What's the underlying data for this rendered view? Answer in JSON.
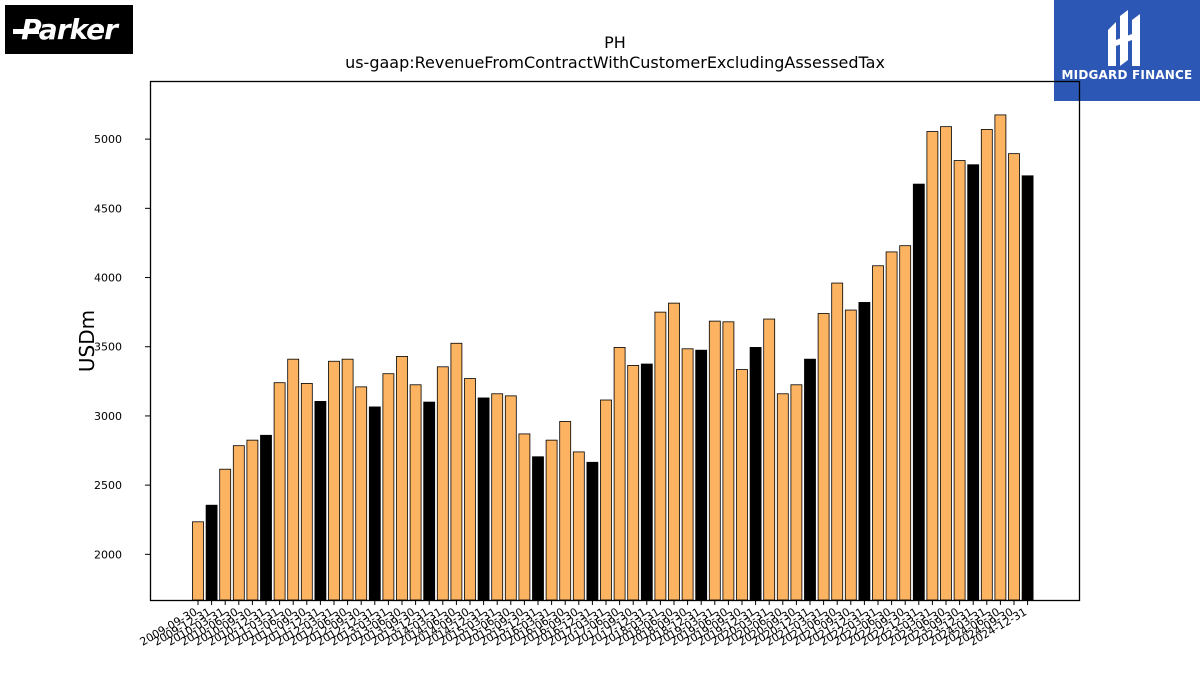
{
  "logos": {
    "left": {
      "text": "Parker",
      "icon": "parker-logo"
    },
    "right": {
      "text": "MIDGARD FINANCE",
      "icon": "midgard-finance-logo"
    }
  },
  "colors": {
    "annual": "#000000",
    "quarterly": "#fdb462",
    "edge": "#000000"
  },
  "chart_data": {
    "type": "bar",
    "title": "PH",
    "subtitle": "us-gaap:RevenueFromContractWithCustomerExcludingAssessedTax",
    "xlabel": "",
    "ylabel": "USDm",
    "ylim": [
      1670,
      5420
    ],
    "yticks": [
      2000,
      2500,
      3000,
      3500,
      4000,
      4500,
      5000
    ],
    "grid": false,
    "categories": [
      "2009-09-30",
      "2009-12-31",
      "2010-03-31",
      "2010-06-30",
      "2010-09-30",
      "2010-12-31",
      "2011-03-31",
      "2011-06-30",
      "2011-09-30",
      "2011-12-31",
      "2012-03-31",
      "2012-06-30",
      "2012-09-30",
      "2012-12-31",
      "2013-03-31",
      "2013-06-30",
      "2013-09-30",
      "2013-12-31",
      "2014-03-31",
      "2014-06-30",
      "2014-09-30",
      "2014-12-31",
      "2015-03-31",
      "2015-06-30",
      "2015-09-30",
      "2015-12-31",
      "2016-03-31",
      "2016-06-30",
      "2016-09-30",
      "2016-12-31",
      "2017-03-31",
      "2017-06-30",
      "2017-09-30",
      "2017-12-31",
      "2018-03-31",
      "2018-06-30",
      "2018-09-30",
      "2018-12-31",
      "2019-03-31",
      "2019-06-30",
      "2019-09-30",
      "2019-12-31",
      "2020-03-31",
      "2020-06-30",
      "2020-09-30",
      "2020-12-31",
      "2021-03-31",
      "2021-06-30",
      "2021-09-30",
      "2021-12-31",
      "2022-03-31",
      "2022-06-30",
      "2022-09-30",
      "2022-12-31",
      "2023-03-31",
      "2023-06-30",
      "2023-09-30",
      "2023-12-31",
      "2024-03-31",
      "2024-06-30",
      "2024-09-30",
      "2024-12-31"
    ],
    "values": [
      2235,
      2355,
      2615,
      2785,
      2825,
      2860,
      3240,
      3410,
      3235,
      3105,
      3395,
      3410,
      3210,
      3065,
      3305,
      3430,
      3225,
      3100,
      3355,
      3525,
      3270,
      3130,
      3160,
      3145,
      2870,
      2705,
      2825,
      2960,
      2740,
      2665,
      3115,
      3495,
      3365,
      3375,
      3750,
      3815,
      3485,
      3475,
      3685,
      3680,
      3335,
      3495,
      3700,
      3160,
      3225,
      3410,
      3740,
      3960,
      3765,
      3820,
      4085,
      4185,
      4230,
      4675,
      5055,
      5090,
      4845,
      4815,
      5070,
      5175,
      4895,
      4735
    ],
    "kinds": [
      "q",
      "a",
      "q",
      "q",
      "q",
      "a",
      "q",
      "q",
      "q",
      "a",
      "q",
      "q",
      "q",
      "a",
      "q",
      "q",
      "q",
      "a",
      "q",
      "q",
      "q",
      "a",
      "q",
      "q",
      "q",
      "a",
      "q",
      "q",
      "q",
      "a",
      "q",
      "q",
      "q",
      "a",
      "q",
      "q",
      "q",
      "a",
      "q",
      "q",
      "q",
      "a",
      "q",
      "q",
      "q",
      "a",
      "q",
      "q",
      "q",
      "a",
      "q",
      "q",
      "q",
      "a",
      "q",
      "q",
      "q",
      "a",
      "q",
      "q",
      "q",
      "a"
    ]
  }
}
